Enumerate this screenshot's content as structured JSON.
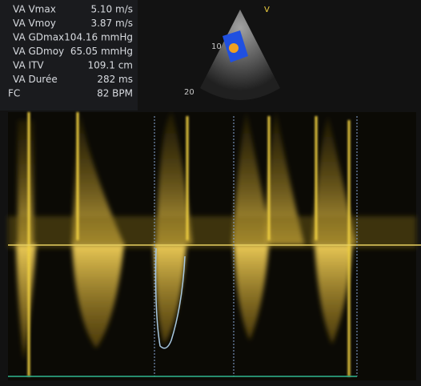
{
  "measurements": [
    {
      "label": "VA Vmax",
      "value": "5.10 m/s"
    },
    {
      "label": "VA Vmoy",
      "value": "3.87 m/s"
    },
    {
      "label": "VA GDmax",
      "value": "104.16 mmHg"
    },
    {
      "label": "VA  GDmoy",
      "value": "65.05 mmHg"
    },
    {
      "label": "VA ITV",
      "value": "109.1 cm"
    },
    {
      "label": "VA Durée",
      "value": "282 ms"
    },
    {
      "label": "FC",
      "value": "82 BPM"
    }
  ],
  "sector": {
    "marker": "V",
    "depth_labels": [
      "10",
      "20"
    ]
  }
}
